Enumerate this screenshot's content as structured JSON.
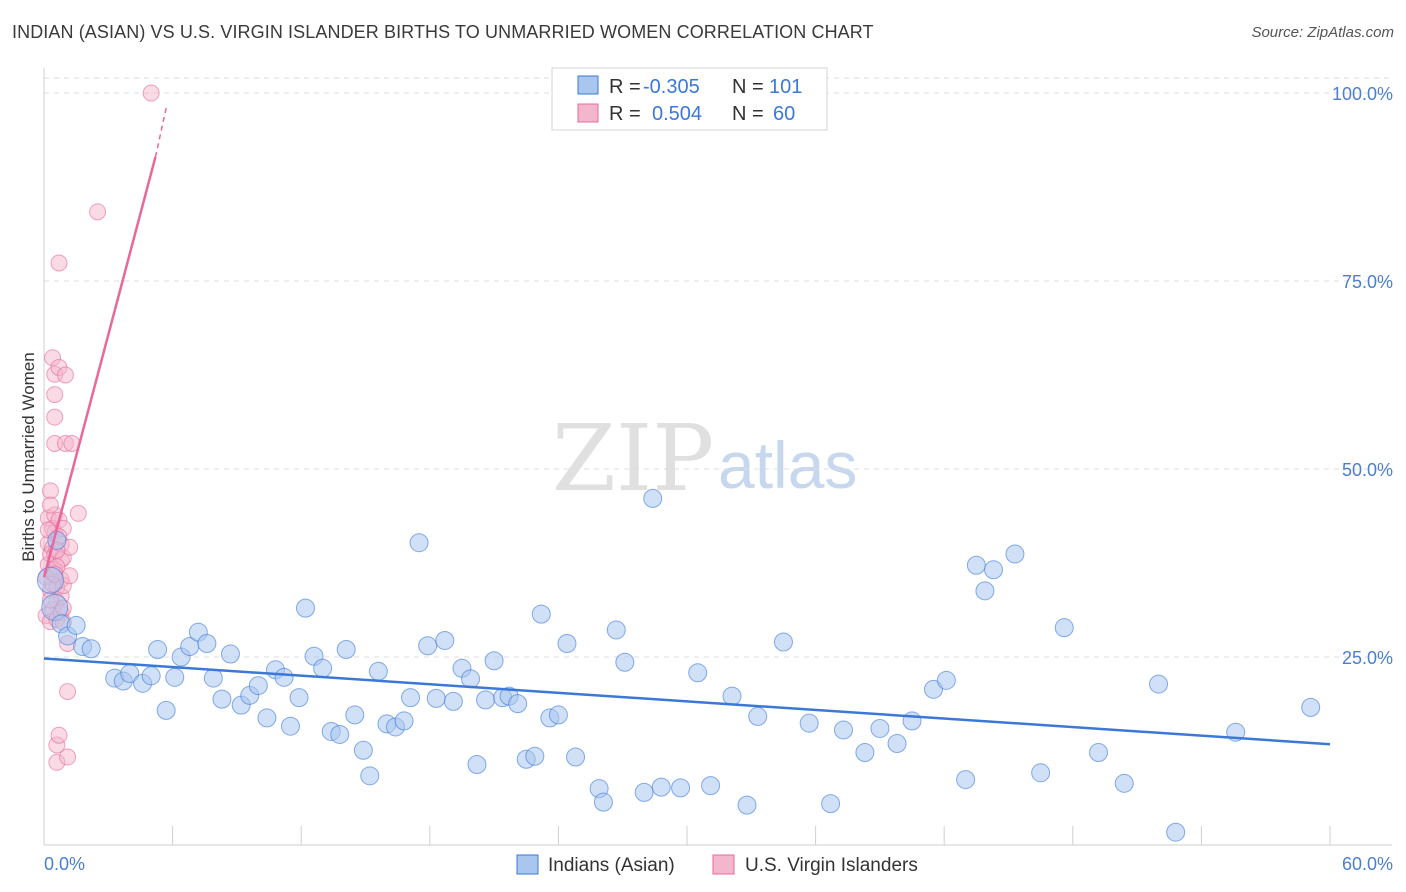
{
  "title": "INDIAN (ASIAN) VS U.S. VIRGIN ISLANDER BIRTHS TO UNMARRIED WOMEN CORRELATION CHART",
  "source": "Source: ZipAtlas.com",
  "watermark": {
    "zip": "ZIP",
    "atlas": "atlas"
  },
  "colors": {
    "blue": "#3b78d8",
    "blue_fill": "#a9c6ee",
    "pink": "#e8689a",
    "pink_fill": "#f4b6cc",
    "grid": "#dddddd"
  },
  "legend": {
    "rows": [
      {
        "r_label": "R =",
        "r_value": "-0.305",
        "n_label": "N =",
        "n_value": "101"
      },
      {
        "r_label": "R =",
        "r_value": "0.504",
        "n_label": "N =",
        "n_value": "60"
      }
    ]
  },
  "bottom_legend": [
    "Indians (Asian)",
    "U.S. Virgin Islanders"
  ],
  "chart_data": {
    "type": "scatter",
    "title": "INDIAN (ASIAN) VS U.S. VIRGIN ISLANDER BIRTHS TO UNMARRIED WOMEN CORRELATION CHART",
    "xlabel": "",
    "ylabel": "Births to Unmarried Women",
    "xlim": [
      0,
      60
    ],
    "ylim": [
      0,
      102
    ],
    "x_tick_labels": [
      "0.0%",
      "60.0%"
    ],
    "y_ticks": [
      25,
      50,
      75,
      100
    ],
    "y_tick_labels": [
      "25.0%",
      "50.0%",
      "75.0%",
      "100.0%"
    ],
    "grid": true,
    "legend_position": "top-center",
    "series": [
      {
        "name": "Indians (Asian)",
        "color": "#3b78d8",
        "r": -0.305,
        "n": 101,
        "trend": {
          "x": [
            0,
            60
          ],
          "y": [
            24.8,
            13.4
          ]
        },
        "points": [
          [
            0.3,
            35.2
          ],
          [
            0.5,
            31.6
          ],
          [
            0.8,
            29.4
          ],
          [
            1.1,
            27.8
          ],
          [
            1.5,
            29.2
          ],
          [
            1.8,
            26.4
          ],
          [
            2.2,
            26.1
          ],
          [
            3.3,
            22.2
          ],
          [
            3.7,
            21.8
          ],
          [
            4.0,
            22.8
          ],
          [
            4.6,
            21.5
          ],
          [
            5.0,
            22.5
          ],
          [
            5.3,
            26.0
          ],
          [
            5.7,
            17.9
          ],
          [
            6.1,
            22.3
          ],
          [
            6.4,
            25.0
          ],
          [
            6.8,
            26.4
          ],
          [
            7.2,
            28.3
          ],
          [
            7.6,
            26.8
          ],
          [
            7.9,
            22.2
          ],
          [
            8.3,
            19.4
          ],
          [
            8.7,
            25.4
          ],
          [
            9.2,
            18.6
          ],
          [
            9.6,
            19.9
          ],
          [
            10.0,
            21.2
          ],
          [
            10.4,
            16.9
          ],
          [
            10.8,
            23.3
          ],
          [
            11.2,
            22.3
          ],
          [
            11.5,
            15.8
          ],
          [
            11.9,
            19.6
          ],
          [
            12.2,
            31.5
          ],
          [
            12.6,
            25.1
          ],
          [
            13.0,
            23.5
          ],
          [
            13.4,
            15.1
          ],
          [
            13.8,
            14.7
          ],
          [
            14.1,
            26.0
          ],
          [
            14.5,
            17.3
          ],
          [
            14.9,
            12.6
          ],
          [
            15.2,
            9.2
          ],
          [
            15.6,
            23.1
          ],
          [
            16.0,
            16.1
          ],
          [
            16.4,
            15.7
          ],
          [
            16.8,
            16.5
          ],
          [
            17.1,
            19.6
          ],
          [
            17.5,
            40.2
          ],
          [
            17.9,
            26.5
          ],
          [
            18.3,
            19.5
          ],
          [
            18.7,
            27.2
          ],
          [
            19.1,
            19.1
          ],
          [
            19.5,
            23.5
          ],
          [
            19.9,
            22.1
          ],
          [
            20.2,
            10.7
          ],
          [
            20.6,
            19.3
          ],
          [
            21.0,
            24.5
          ],
          [
            21.4,
            19.6
          ],
          [
            21.7,
            19.8
          ],
          [
            22.1,
            18.8
          ],
          [
            22.5,
            11.4
          ],
          [
            22.9,
            11.8
          ],
          [
            23.2,
            30.7
          ],
          [
            23.6,
            16.9
          ],
          [
            24.0,
            17.3
          ],
          [
            24.4,
            26.8
          ],
          [
            24.8,
            11.7
          ],
          [
            25.9,
            7.5
          ],
          [
            26.1,
            5.7
          ],
          [
            26.7,
            28.6
          ],
          [
            27.1,
            24.3
          ],
          [
            28.0,
            7.0
          ],
          [
            28.4,
            46.1
          ],
          [
            28.8,
            7.7
          ],
          [
            29.7,
            7.6
          ],
          [
            30.5,
            22.9
          ],
          [
            31.1,
            7.9
          ],
          [
            32.1,
            19.8
          ],
          [
            32.8,
            5.3
          ],
          [
            33.3,
            17.1
          ],
          [
            34.5,
            27.0
          ],
          [
            35.7,
            16.2
          ],
          [
            36.7,
            5.5
          ],
          [
            37.3,
            15.3
          ],
          [
            38.3,
            12.3
          ],
          [
            39.0,
            15.5
          ],
          [
            39.8,
            13.5
          ],
          [
            40.5,
            16.5
          ],
          [
            41.5,
            20.7
          ],
          [
            42.1,
            21.9
          ],
          [
            43.0,
            8.7
          ],
          [
            43.5,
            37.2
          ],
          [
            43.9,
            33.8
          ],
          [
            44.3,
            36.6
          ],
          [
            45.3,
            38.7
          ],
          [
            46.5,
            9.6
          ],
          [
            47.6,
            28.9
          ],
          [
            49.2,
            12.3
          ],
          [
            50.4,
            8.2
          ],
          [
            52.0,
            21.4
          ],
          [
            52.8,
            1.7
          ],
          [
            55.6,
            15.0
          ],
          [
            59.1,
            18.3
          ],
          [
            0.6,
            40.5
          ]
        ]
      },
      {
        "name": "U.S. Virgin Islanders",
        "color": "#e8689a",
        "r": 0.504,
        "n": 60,
        "trend": {
          "x": [
            0,
            5.2
          ],
          "y": [
            35.6,
            91.5
          ]
        },
        "trend_dashed": {
          "x": [
            5.2,
            5.7
          ],
          "y": [
            91.5,
            98.0
          ]
        },
        "points": [
          [
            0.1,
            30.5
          ],
          [
            0.1,
            35.6
          ],
          [
            0.2,
            37.3
          ],
          [
            0.2,
            40.1
          ],
          [
            0.2,
            43.5
          ],
          [
            0.3,
            47.1
          ],
          [
            0.3,
            33.9
          ],
          [
            0.3,
            29.7
          ],
          [
            0.3,
            38.7
          ],
          [
            0.4,
            42.1
          ],
          [
            0.4,
            39.5
          ],
          [
            0.4,
            36.2
          ],
          [
            0.4,
            31.3
          ],
          [
            0.4,
            64.8
          ],
          [
            0.5,
            62.6
          ],
          [
            0.5,
            59.9
          ],
          [
            0.5,
            56.9
          ],
          [
            0.5,
            53.4
          ],
          [
            0.5,
            43.9
          ],
          [
            0.5,
            41.5
          ],
          [
            0.5,
            38.6
          ],
          [
            0.5,
            36.6
          ],
          [
            0.6,
            34.3
          ],
          [
            0.6,
            32.4
          ],
          [
            0.6,
            30.0
          ],
          [
            0.6,
            13.3
          ],
          [
            0.6,
            11.0
          ],
          [
            0.7,
            14.6
          ],
          [
            0.7,
            77.4
          ],
          [
            0.7,
            63.5
          ],
          [
            0.7,
            43.2
          ],
          [
            0.8,
            40.0
          ],
          [
            0.8,
            37.9
          ],
          [
            0.8,
            35.3
          ],
          [
            0.8,
            33.1
          ],
          [
            0.8,
            30.9
          ],
          [
            0.9,
            42.1
          ],
          [
            0.9,
            38.2
          ],
          [
            0.9,
            34.5
          ],
          [
            0.9,
            31.5
          ],
          [
            1.0,
            62.5
          ],
          [
            1.0,
            53.4
          ],
          [
            1.1,
            26.8
          ],
          [
            1.1,
            20.4
          ],
          [
            1.1,
            11.7
          ],
          [
            1.2,
            39.6
          ],
          [
            1.2,
            35.8
          ],
          [
            1.3,
            53.4
          ],
          [
            1.6,
            44.1
          ],
          [
            2.5,
            84.2
          ],
          [
            5.0,
            100.0
          ],
          [
            0.2,
            41.9
          ],
          [
            0.3,
            45.2
          ],
          [
            0.6,
            37.0
          ],
          [
            0.7,
            41.0
          ],
          [
            0.4,
            34.7
          ],
          [
            0.5,
            36.0
          ],
          [
            0.3,
            32.6
          ],
          [
            0.9,
            29.6
          ],
          [
            0.6,
            39.2
          ]
        ]
      }
    ]
  }
}
